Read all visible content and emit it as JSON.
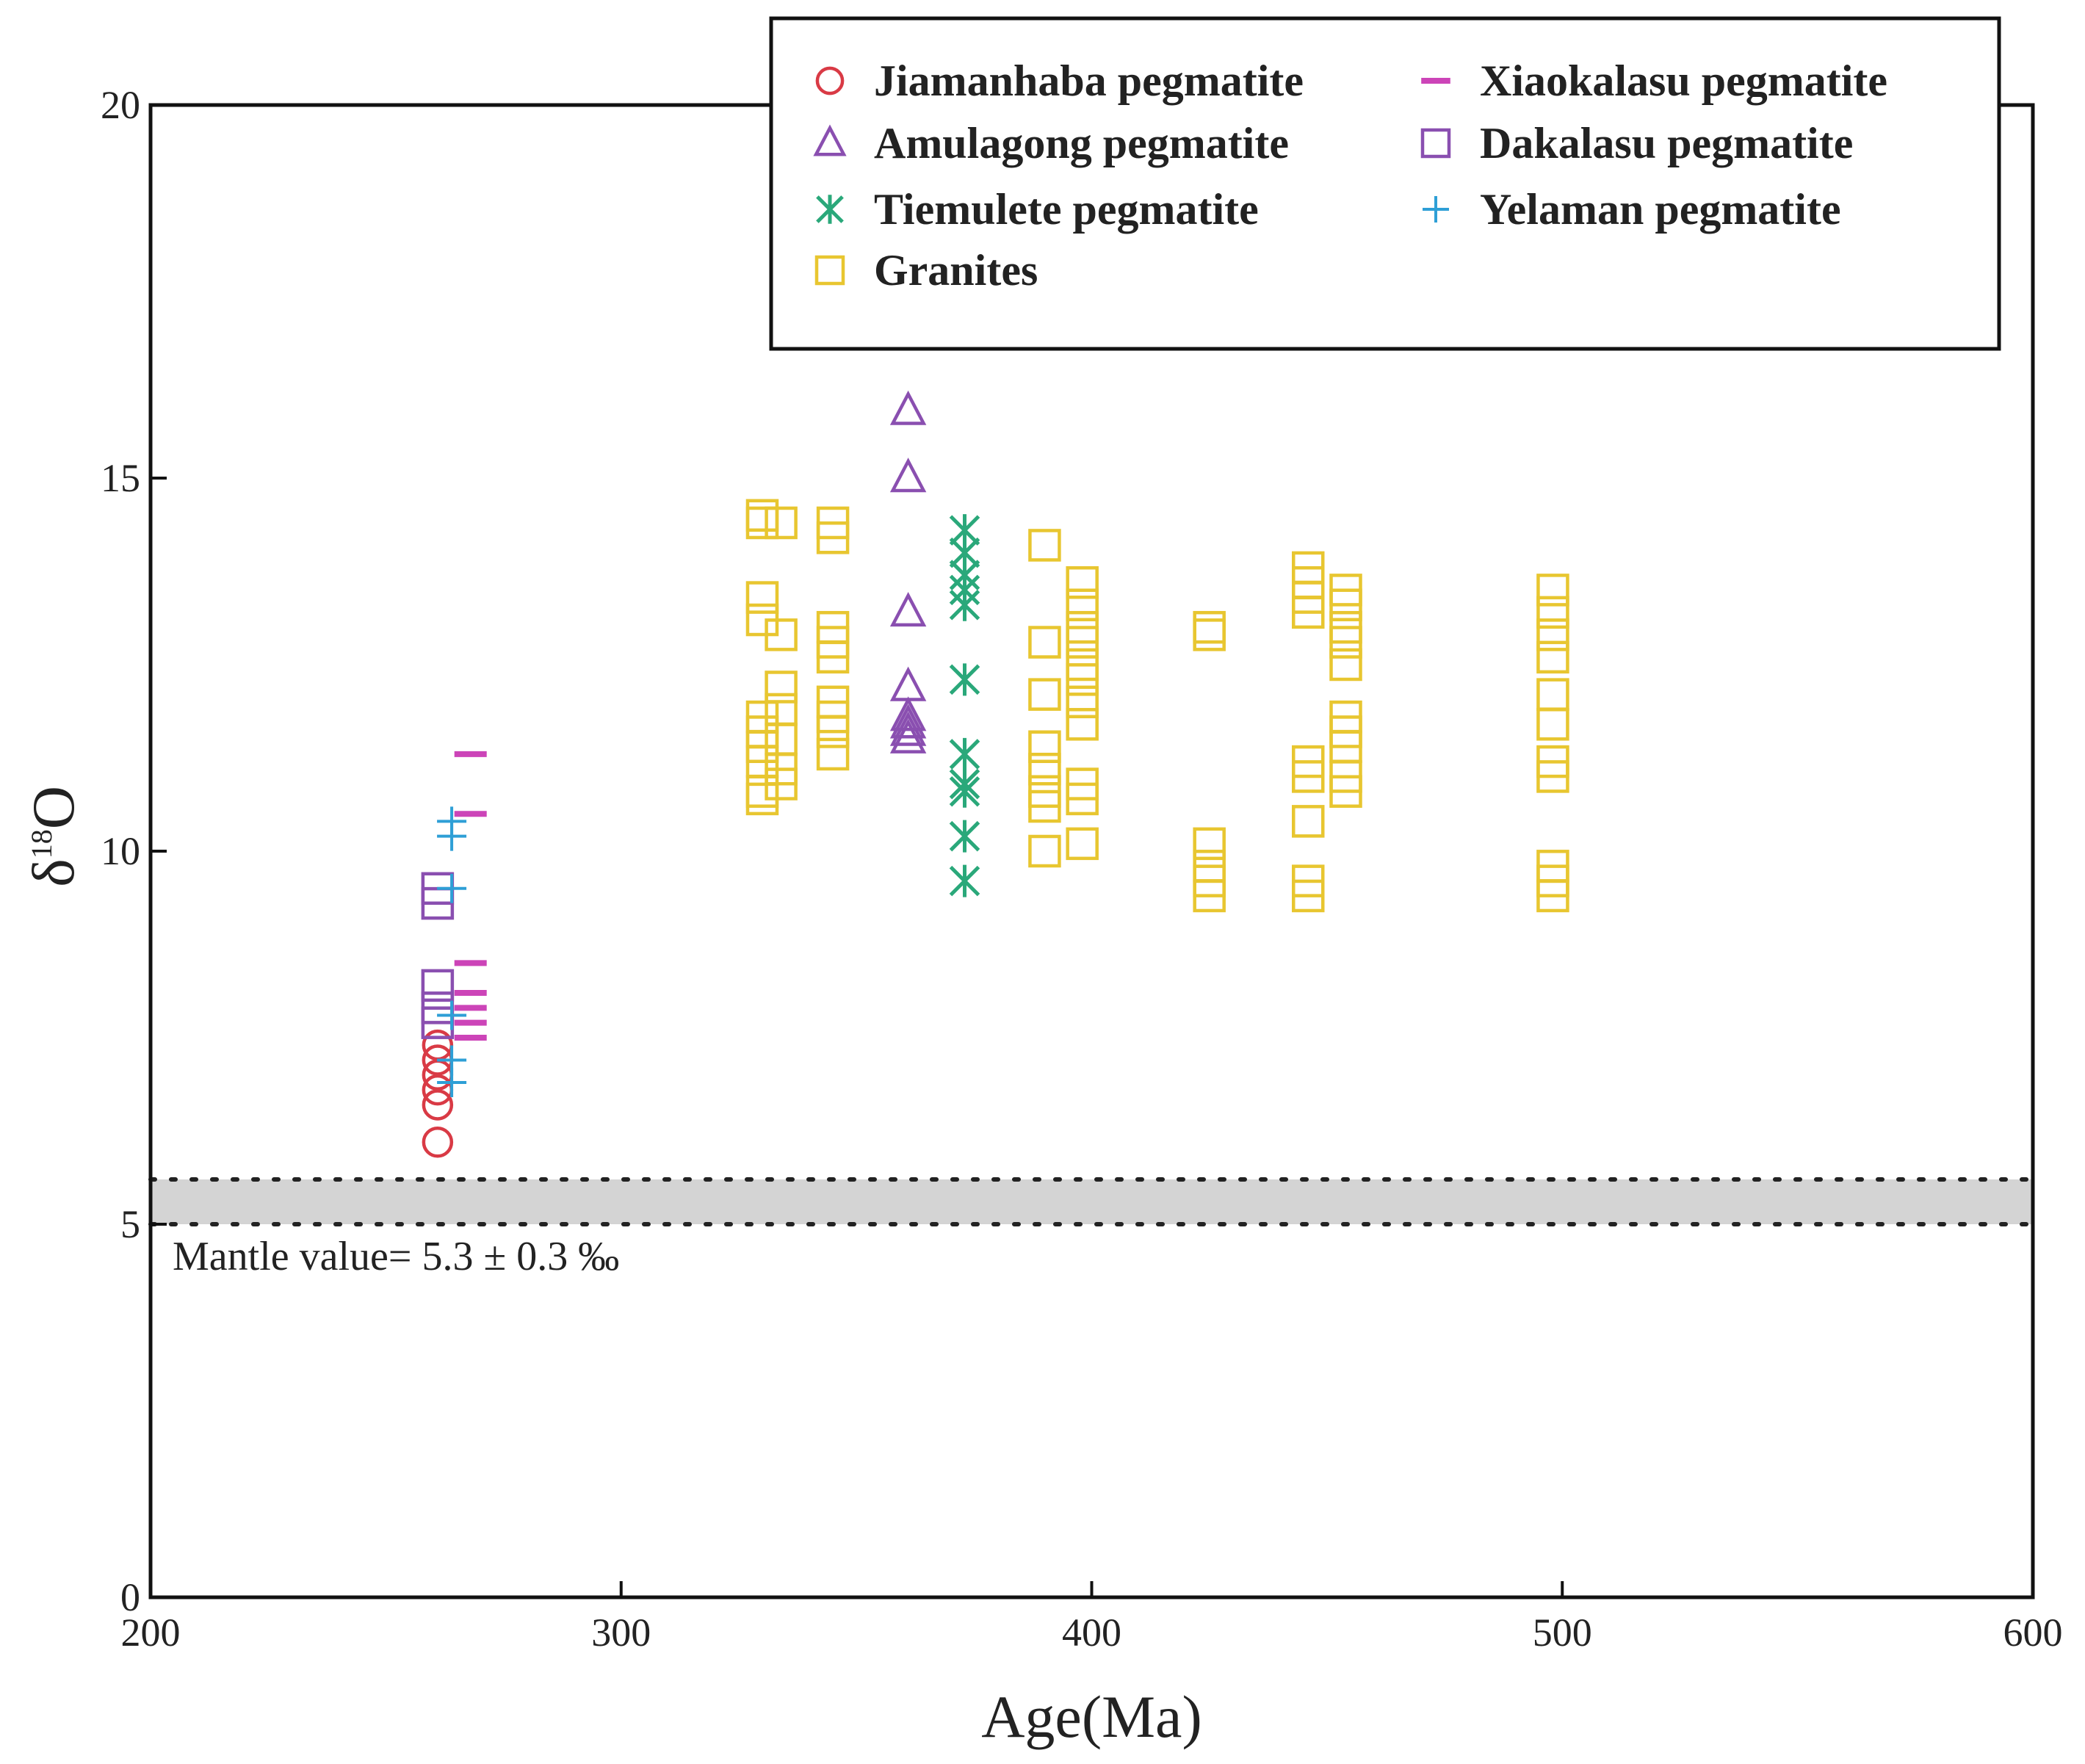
{
  "chart_data": {
    "type": "scatter",
    "title": "",
    "xlabel": "Age(Ma)",
    "ylabel_main": "δ",
    "ylabel_sup": "18",
    "ylabel_tail": "O",
    "xlim": [
      200,
      600
    ],
    "ylim": [
      0,
      20
    ],
    "xticks": [
      200,
      300,
      400,
      500,
      600
    ],
    "yticks": [
      0,
      5,
      10,
      15,
      20
    ],
    "legend_position": "top-right",
    "mantle": {
      "center": 5.3,
      "uncertainty": 0.3,
      "label": "Mantle value= 5.3 ± 0.3 ‰",
      "color": "#d4d4d4"
    },
    "series": [
      {
        "name": "Jiamanhaba pegmatite",
        "marker": "circle",
        "color": "#d93a45",
        "points": [
          [
            261,
            6.1
          ],
          [
            261,
            6.6
          ],
          [
            261,
            6.8
          ],
          [
            261,
            7.0
          ],
          [
            261,
            7.2
          ],
          [
            261,
            7.4
          ]
        ]
      },
      {
        "name": "Amulagong pegmatite",
        "marker": "triangle",
        "color": "#8a4fb0",
        "points": [
          [
            361,
            15.9
          ],
          [
            361,
            15.0
          ],
          [
            361,
            13.2
          ],
          [
            361,
            12.2
          ],
          [
            361,
            11.8
          ],
          [
            361,
            11.7
          ],
          [
            361,
            11.6
          ],
          [
            361,
            11.5
          ]
        ]
      },
      {
        "name": "Tiemulete pegmatite",
        "marker": "asterisk",
        "color": "#2aa87a",
        "points": [
          [
            373,
            14.3
          ],
          [
            373,
            14.0
          ],
          [
            373,
            13.7
          ],
          [
            373,
            13.5
          ],
          [
            373,
            13.3
          ],
          [
            373,
            12.3
          ],
          [
            373,
            11.3
          ],
          [
            373,
            10.9
          ],
          [
            373,
            10.8
          ],
          [
            373,
            10.2
          ],
          [
            373,
            9.6
          ]
        ]
      },
      {
        "name": "Granites",
        "marker": "square",
        "color": "#e8c630",
        "points": [
          [
            330,
            14.5
          ],
          [
            330,
            14.4
          ],
          [
            330,
            13.4
          ],
          [
            330,
            13.1
          ],
          [
            330,
            11.8
          ],
          [
            330,
            11.6
          ],
          [
            330,
            11.4
          ],
          [
            330,
            11.2
          ],
          [
            330,
            10.8
          ],
          [
            330,
            10.7
          ],
          [
            334,
            14.4
          ],
          [
            334,
            12.9
          ],
          [
            334,
            12.2
          ],
          [
            334,
            11.9
          ],
          [
            334,
            11.5
          ],
          [
            334,
            11.1
          ],
          [
            334,
            10.9
          ],
          [
            345,
            14.4
          ],
          [
            345,
            14.2
          ],
          [
            345,
            13.0
          ],
          [
            345,
            12.8
          ],
          [
            345,
            12.6
          ],
          [
            345,
            12.0
          ],
          [
            345,
            11.8
          ],
          [
            345,
            11.6
          ],
          [
            345,
            11.3
          ],
          [
            390,
            14.1
          ],
          [
            390,
            12.8
          ],
          [
            390,
            12.1
          ],
          [
            390,
            11.4
          ],
          [
            390,
            11.1
          ],
          [
            390,
            10.8
          ],
          [
            390,
            10.6
          ],
          [
            390,
            10.0
          ],
          [
            398,
            13.6
          ],
          [
            398,
            13.3
          ],
          [
            398,
            13.0
          ],
          [
            398,
            12.8
          ],
          [
            398,
            12.5
          ],
          [
            398,
            12.3
          ],
          [
            398,
            12.0
          ],
          [
            398,
            11.7
          ],
          [
            398,
            10.9
          ],
          [
            398,
            10.7
          ],
          [
            398,
            10.1
          ],
          [
            425,
            13.0
          ],
          [
            425,
            12.9
          ],
          [
            425,
            10.1
          ],
          [
            425,
            9.8
          ],
          [
            425,
            9.6
          ],
          [
            425,
            9.4
          ],
          [
            446,
            13.8
          ],
          [
            446,
            13.6
          ],
          [
            446,
            13.4
          ],
          [
            446,
            13.2
          ],
          [
            446,
            11.2
          ],
          [
            446,
            11.0
          ],
          [
            446,
            10.4
          ],
          [
            446,
            9.6
          ],
          [
            446,
            9.4
          ],
          [
            454,
            13.5
          ],
          [
            454,
            13.3
          ],
          [
            454,
            13.0
          ],
          [
            454,
            12.8
          ],
          [
            454,
            12.5
          ],
          [
            454,
            11.8
          ],
          [
            454,
            11.6
          ],
          [
            454,
            11.4
          ],
          [
            454,
            11.0
          ],
          [
            454,
            10.8
          ],
          [
            498,
            13.5
          ],
          [
            498,
            13.2
          ],
          [
            498,
            12.9
          ],
          [
            498,
            12.6
          ],
          [
            498,
            12.1
          ],
          [
            498,
            11.7
          ],
          [
            498,
            11.2
          ],
          [
            498,
            11.0
          ],
          [
            498,
            9.8
          ],
          [
            498,
            9.6
          ],
          [
            498,
            9.4
          ]
        ]
      },
      {
        "name": "Xiaokalasu pegmatite",
        "marker": "dash",
        "color": "#cc44b8",
        "points": [
          [
            268,
            11.3
          ],
          [
            268,
            10.5
          ],
          [
            268,
            8.5
          ],
          [
            268,
            8.1
          ],
          [
            268,
            7.9
          ],
          [
            268,
            7.7
          ],
          [
            268,
            7.5
          ]
        ]
      },
      {
        "name": "Dakalasu pegmatite",
        "marker": "square",
        "color": "#8a4fb0",
        "points": [
          [
            261,
            9.5
          ],
          [
            261,
            9.3
          ],
          [
            261,
            8.2
          ],
          [
            261,
            7.9
          ],
          [
            261,
            7.7
          ]
        ]
      },
      {
        "name": "Yelaman pegmatite",
        "marker": "plus",
        "color": "#2e9fd6",
        "points": [
          [
            264,
            10.4
          ],
          [
            264,
            10.2
          ],
          [
            264,
            9.5
          ],
          [
            264,
            7.8
          ],
          [
            264,
            7.2
          ],
          [
            264,
            6.9
          ]
        ]
      }
    ],
    "legend_order": [
      "Jiamanhaba pegmatite",
      "Xiaokalasu pegmatite",
      "Amulagong pegmatite",
      "Dakalasu pegmatite",
      "Tiemulete pegmatite",
      "Yelaman pegmatite",
      "Granites"
    ]
  }
}
